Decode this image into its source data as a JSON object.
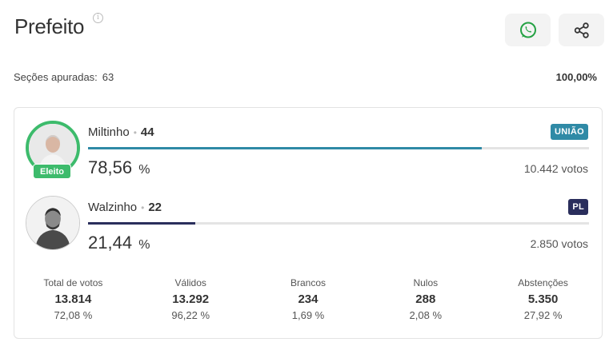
{
  "header": {
    "title": "Prefeito",
    "info_icon": "i"
  },
  "summary": {
    "sections_label": "Seções apuradas:",
    "sections_value": "63",
    "percent_counted": "100,00%"
  },
  "candidates": [
    {
      "name": "Miltinho",
      "number": "44",
      "party": "UNIÃO",
      "party_color": "#2f8aa6",
      "elected_label": "Eleito",
      "percent": "78,56",
      "percent_symbol": "%",
      "vote_share": 0.7856,
      "votes": "10.442 votos"
    },
    {
      "name": "Walzinho",
      "number": "22",
      "party": "PL",
      "party_color": "#2a2e5c",
      "percent": "21,44",
      "percent_symbol": "%",
      "vote_share": 0.2144,
      "votes": "2.850 votos"
    }
  ],
  "stats": [
    {
      "label": "Total de votos",
      "value": "13.814",
      "pct": "72,08 %"
    },
    {
      "label": "Válidos",
      "value": "13.292",
      "pct": "96,22 %"
    },
    {
      "label": "Brancos",
      "value": "234",
      "pct": "1,69 %"
    },
    {
      "label": "Nulos",
      "value": "288",
      "pct": "2,08 %"
    },
    {
      "label": "Abstenções",
      "value": "5.350",
      "pct": "27,92 %"
    }
  ],
  "colors": {
    "elected_green": "#3dbb6c",
    "whatsapp_green": "#25a244"
  }
}
